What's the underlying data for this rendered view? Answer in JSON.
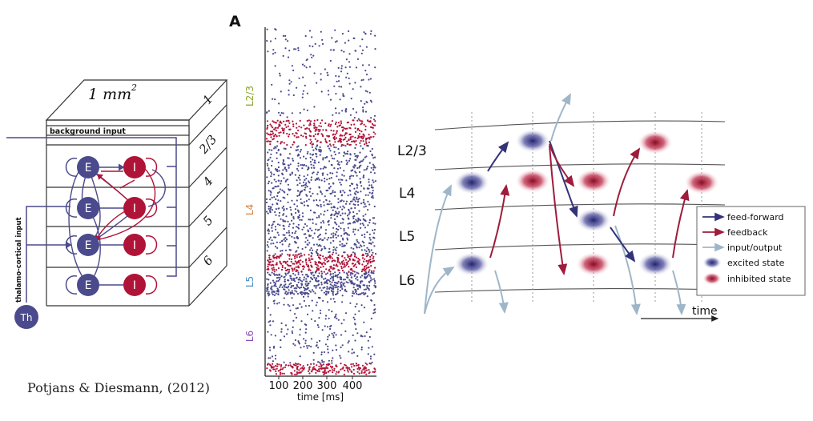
{
  "colors": {
    "excitatory": "#4a4a8c",
    "inhibitory": "#b01338",
    "feedforward": "#33337a",
    "feedback": "#9e1c3c",
    "io": "#9fb6c8",
    "axis": "#222222"
  },
  "column": {
    "area_label": "1 mm",
    "area_exp": "2",
    "background_input": "background input",
    "thalamic_input": "thalamo-cortical input",
    "thalamus": "Th",
    "layers": [
      "1",
      "2/3",
      "4",
      "5",
      "6"
    ],
    "excitatory": "E",
    "inhibitory": "I"
  },
  "citation": "Potjans & Diesmann, (2012)",
  "raster": {
    "panel_label": "A",
    "layer_labels": [
      {
        "name": "L2/3",
        "color": "#8aa52a"
      },
      {
        "name": "L4",
        "color": "#d3803d"
      },
      {
        "name": "L5",
        "color": "#4a90c8"
      },
      {
        "name": "L6",
        "color": "#8e4fb5"
      }
    ],
    "xticks": [
      "100",
      "200",
      "300",
      "400"
    ],
    "xlabel": "time [ms]"
  },
  "flow": {
    "layers": [
      "L2/3",
      "L4",
      "L5",
      "L6"
    ],
    "time_label": "time",
    "legend": [
      "feed-forward",
      "feedback",
      "input/output",
      "excited state",
      "inhibited state"
    ]
  }
}
